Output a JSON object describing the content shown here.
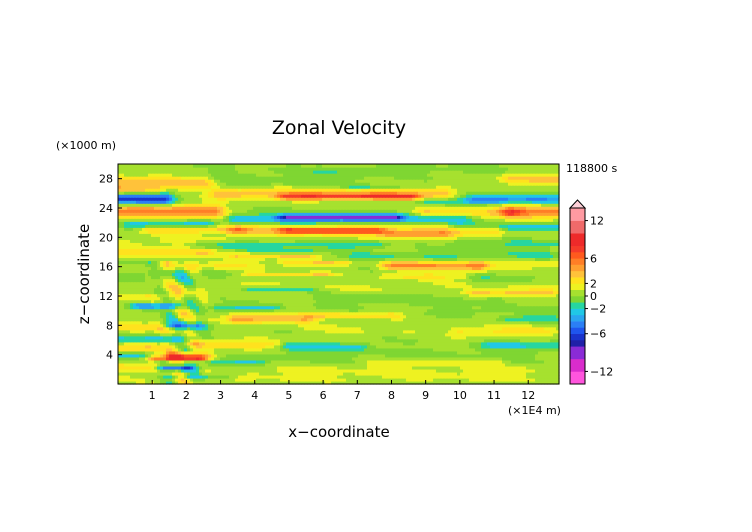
{
  "chart_data": {
    "type": "heatmap",
    "title": "Zonal Velocity",
    "xlabel": "x−coordinate",
    "ylabel": "z−coordinate",
    "x_unit": "(×1E4 m)",
    "y_unit": "(×1000 m)",
    "time_label": "118800 s",
    "xlim": [
      0,
      12.9
    ],
    "ylim": [
      0,
      30
    ],
    "x_ticks": [
      1,
      2,
      3,
      4,
      5,
      6,
      7,
      8,
      9,
      10,
      11,
      12
    ],
    "y_ticks": [
      4,
      8,
      12,
      16,
      20,
      24,
      28
    ],
    "x_tick_labels": [
      "1",
      "2",
      "3",
      "4",
      "5",
      "6",
      "7",
      "8",
      "9",
      "10",
      "11",
      "12"
    ],
    "y_tick_labels": [
      "4",
      "8",
      "12",
      "16",
      "20",
      "24",
      "28"
    ],
    "colorbar": {
      "labels": [
        "12",
        "6",
        "2",
        "0",
        "−2",
        "−6",
        "−12"
      ],
      "label_values": [
        12,
        6,
        2,
        0,
        -2,
        -6,
        -12
      ],
      "levels": [
        -14,
        -12,
        -10,
        -8,
        -7,
        -6,
        -5,
        -4,
        -3,
        -2,
        -1,
        0,
        1,
        2,
        3,
        4,
        5,
        6,
        7,
        8,
        10,
        12,
        14
      ],
      "colors": [
        "#ff55dd",
        "#d92ccc",
        "#8a2bd6",
        "#2020a8",
        "#1a33cc",
        "#1f55ee",
        "#2b7ff5",
        "#2aa6f0",
        "#20c8e6",
        "#26d6a0",
        "#7fd632",
        "#a6e12f",
        "#eef221",
        "#ffe21e",
        "#ffc23a",
        "#ff9f30",
        "#ff7e26",
        "#ff5a1e",
        "#f53b2a",
        "#ee2a2a",
        "#f06a6a",
        "#ff9aa2"
      ],
      "extend": "max"
    },
    "bands": [
      {
        "z": 27.5,
        "x0": 0.0,
        "x1": 2.5,
        "w": 0.9,
        "v": 3.5
      },
      {
        "z": 28.0,
        "x0": 11.5,
        "x1": 12.9,
        "w": 0.7,
        "v": 3.0
      },
      {
        "z": 28.2,
        "x0": 2.0,
        "x1": 7.0,
        "w": 1.3,
        "v": -0.8
      },
      {
        "z": 29.2,
        "x0": 6.0,
        "x1": 11.0,
        "w": 0.7,
        "v": -0.7
      },
      {
        "z": 26.5,
        "x0": 0.0,
        "x1": 1.0,
        "w": 0.6,
        "v": 2.5
      },
      {
        "z": 26.0,
        "x0": 3.0,
        "x1": 9.5,
        "w": 0.7,
        "v": 3.5
      },
      {
        "z": 25.6,
        "x0": 5.0,
        "x1": 8.5,
        "w": 0.4,
        "v": 5.0
      },
      {
        "z": 27.0,
        "x0": 7.0,
        "x1": 8.0,
        "w": 0.3,
        "v": -2.0
      },
      {
        "z": 25.3,
        "x0": 0.0,
        "x1": 1.3,
        "w": 0.8,
        "v": -7.0
      },
      {
        "z": 25.3,
        "x0": 10.5,
        "x1": 12.9,
        "w": 0.6,
        "v": -4.0
      },
      {
        "z": 25.0,
        "x0": 9.0,
        "x1": 11.0,
        "w": 0.4,
        "v": -2.0
      },
      {
        "z": 23.6,
        "x0": 0.0,
        "x1": 2.8,
        "w": 0.9,
        "v": 5.0
      },
      {
        "z": 23.5,
        "x0": 11.5,
        "x1": 12.9,
        "w": 0.8,
        "v": 5.0
      },
      {
        "z": 23.5,
        "x0": 9.0,
        "x1": 11.5,
        "w": 0.6,
        "v": 3.0
      },
      {
        "z": 22.6,
        "x0": 3.5,
        "x1": 10.0,
        "w": 0.8,
        "v": -3.0
      },
      {
        "z": 22.8,
        "x0": 5.0,
        "x1": 8.0,
        "w": 0.4,
        "v": -6.0
      },
      {
        "z": 21.9,
        "x0": 0.5,
        "x1": 2.5,
        "w": 0.5,
        "v": -3.0
      },
      {
        "z": 21.5,
        "x0": 10.0,
        "x1": 12.9,
        "w": 0.6,
        "v": -2.5
      },
      {
        "z": 21.1,
        "x0": 1.0,
        "x1": 3.5,
        "w": 0.5,
        "v": 3.0
      },
      {
        "z": 21.0,
        "x0": 3.5,
        "x1": 11.0,
        "w": 0.8,
        "v": 3.0
      },
      {
        "z": 21.0,
        "x0": 5.0,
        "x1": 7.5,
        "w": 0.4,
        "v": 4.5
      },
      {
        "z": 20.5,
        "x0": 8.0,
        "x1": 9.5,
        "w": 0.4,
        "v": 3.0
      },
      {
        "z": 19.5,
        "x0": 0.0,
        "x1": 3.0,
        "w": 0.7,
        "v": 1.0
      },
      {
        "z": 19.0,
        "x0": 2.5,
        "x1": 7.5,
        "w": 0.5,
        "v": -2.0
      },
      {
        "z": 19.2,
        "x0": 10.0,
        "x1": 12.9,
        "w": 0.5,
        "v": -1.5
      },
      {
        "z": 18.0,
        "x0": 0.0,
        "x1": 2.5,
        "w": 0.6,
        "v": 2.5
      },
      {
        "z": 18.2,
        "x0": 4.0,
        "x1": 5.5,
        "w": 0.3,
        "v": -1.5
      },
      {
        "z": 17.6,
        "x0": 7.0,
        "x1": 12.5,
        "w": 0.6,
        "v": -1.5
      },
      {
        "z": 17.5,
        "x0": 3.5,
        "x1": 5.5,
        "w": 0.4,
        "v": 2.5
      },
      {
        "z": 16.6,
        "x0": 0.0,
        "x1": 1.0,
        "w": 0.5,
        "v": -2.5
      },
      {
        "z": 16.3,
        "x0": 0.0,
        "x1": 4.0,
        "w": 0.7,
        "v": 1.5
      },
      {
        "z": 16.5,
        "x0": 5.0,
        "x1": 6.5,
        "w": 0.3,
        "v": 3.0
      },
      {
        "z": 16.2,
        "x0": 8.0,
        "x1": 10.5,
        "w": 0.6,
        "v": 4.5
      },
      {
        "z": 16.3,
        "x0": 10.5,
        "x1": 12.9,
        "w": 0.6,
        "v": 1.5
      },
      {
        "z": 15.0,
        "x0": 0.0,
        "x1": 3.0,
        "w": 0.7,
        "v": -1.0
      },
      {
        "z": 15.0,
        "x0": 4.0,
        "x1": 6.0,
        "w": 0.3,
        "v": 2.5
      },
      {
        "z": 14.8,
        "x0": 8.0,
        "x1": 10.0,
        "w": 0.4,
        "v": 2.0
      },
      {
        "z": 14.5,
        "x0": 10.5,
        "x1": 12.0,
        "w": 0.5,
        "v": -1.0
      },
      {
        "z": 13.2,
        "x0": 2.0,
        "x1": 12.9,
        "w": 0.9,
        "v": 0.6
      },
      {
        "z": 13.0,
        "x0": 4.0,
        "x1": 5.5,
        "w": 0.3,
        "v": -2.5
      },
      {
        "z": 12.5,
        "x0": 10.5,
        "x1": 12.5,
        "w": 0.4,
        "v": 3.0
      },
      {
        "z": 12.0,
        "x0": 0.0,
        "x1": 1.5,
        "w": 0.4,
        "v": 2.0
      },
      {
        "z": 11.6,
        "x0": 6.0,
        "x1": 11.0,
        "w": 1.0,
        "v": -0.8
      },
      {
        "z": 10.7,
        "x0": 0.7,
        "x1": 1.6,
        "w": 0.35,
        "v": -5.0
      },
      {
        "z": 10.5,
        "x0": 3.0,
        "x1": 4.5,
        "w": 0.4,
        "v": -2.5
      },
      {
        "z": 10.0,
        "x0": 9.5,
        "x1": 12.9,
        "w": 0.5,
        "v": -0.8
      },
      {
        "z": 9.0,
        "x0": 3.5,
        "x1": 5.5,
        "w": 0.6,
        "v": 4.0
      },
      {
        "z": 9.4,
        "x0": 6.0,
        "x1": 8.0,
        "w": 0.4,
        "v": 2.5
      },
      {
        "z": 9.0,
        "x0": 11.5,
        "x1": 12.7,
        "w": 0.4,
        "v": -2.0
      },
      {
        "z": 8.0,
        "x0": 1.5,
        "x1": 2.3,
        "w": 0.4,
        "v": -3.5
      },
      {
        "z": 7.8,
        "x0": 0.0,
        "x1": 1.2,
        "w": 0.6,
        "v": 2.0
      },
      {
        "z": 7.5,
        "x0": 5.5,
        "x1": 8.5,
        "w": 0.8,
        "v": 0.6
      },
      {
        "z": 7.2,
        "x0": 10.0,
        "x1": 12.5,
        "w": 0.7,
        "v": 2.0
      },
      {
        "z": 6.2,
        "x0": 0.0,
        "x1": 2.0,
        "w": 0.5,
        "v": -2.5
      },
      {
        "z": 5.5,
        "x0": 2.0,
        "x1": 4.5,
        "w": 0.6,
        "v": 2.5
      },
      {
        "z": 5.2,
        "x0": 5.0,
        "x1": 7.0,
        "w": 0.5,
        "v": -2.5
      },
      {
        "z": 5.4,
        "x0": 11.0,
        "x1": 12.9,
        "w": 0.5,
        "v": -2.5
      },
      {
        "z": 5.0,
        "x0": 0.0,
        "x1": 0.9,
        "w": 0.6,
        "v": 3.0
      },
      {
        "z": 4.2,
        "x0": 4.5,
        "x1": 12.0,
        "w": 1.1,
        "v": -0.7
      },
      {
        "z": 4.0,
        "x0": 0.0,
        "x1": 1.2,
        "w": 0.4,
        "v": -3.0
      },
      {
        "z": 4.0,
        "x0": 1.2,
        "x1": 2.5,
        "w": 0.6,
        "v": 3.0
      },
      {
        "z": 3.6,
        "x0": 1.2,
        "x1": 2.3,
        "w": 0.4,
        "v": 6.0
      },
      {
        "z": 3.0,
        "x0": 2.3,
        "x1": 4.0,
        "w": 0.4,
        "v": -2.5
      },
      {
        "z": 3.0,
        "x0": 7.5,
        "x1": 11.0,
        "w": 0.5,
        "v": 1.5
      },
      {
        "z": 2.4,
        "x0": 0.0,
        "x1": 1.2,
        "w": 0.5,
        "v": 2.0
      },
      {
        "z": 2.2,
        "x0": 1.4,
        "x1": 2.0,
        "w": 0.3,
        "v": -5.0
      },
      {
        "z": 1.8,
        "x0": 4.0,
        "x1": 12.0,
        "w": 0.7,
        "v": 1.0
      },
      {
        "z": 1.0,
        "x0": 1.5,
        "x1": 3.0,
        "w": 0.3,
        "v": -2.0
      },
      {
        "z": 0.8,
        "x0": 0.0,
        "x1": 12.9,
        "w": 0.5,
        "v": 0.7
      }
    ]
  }
}
